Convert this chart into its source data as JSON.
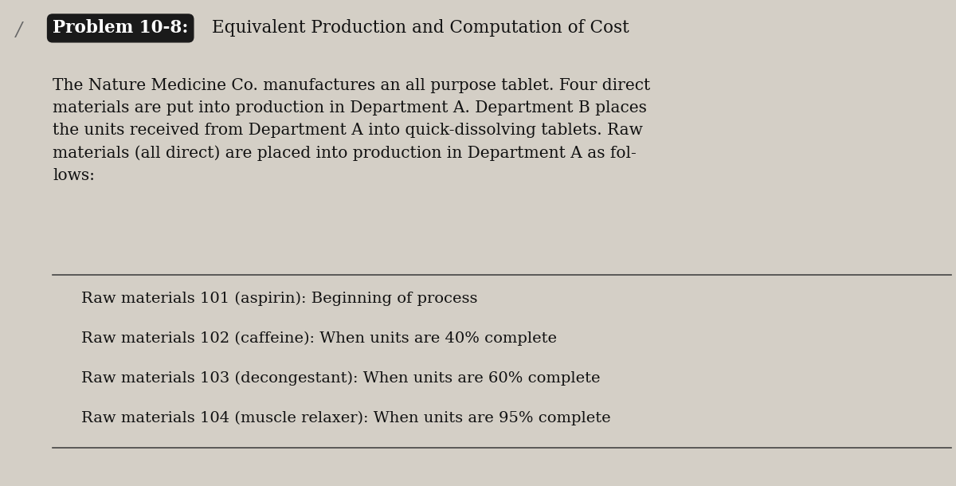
{
  "bg_color": "#d4cfc6",
  "problem_label": "Problem 10-8:",
  "problem_label_bg": "#1a1a1a",
  "problem_label_color": "#ffffff",
  "problem_title": "Equivalent Production and Computation of Cost",
  "body_text": "The Nature Medicine Co. manufactures an all purpose tablet. Four direct\nmaterials are put into production in Department A. Department B places\nthe units received from Department A into quick-dissolving tablets. Raw\nmaterials (all direct) are placed into production in Department A as fol-\nlows:",
  "list_items": [
    "Raw materials 101 (aspirin): Beginning of process",
    "Raw materials 102 (caffeine): When units are 40% complete",
    "Raw materials 103 (decongestant): When units are 60% complete",
    "Raw materials 104 (muscle relaxer): When units are 95% complete"
  ],
  "header_fontsize": 15.5,
  "body_fontsize": 14.5,
  "list_fontsize": 14,
  "slash_color": "#666666",
  "text_color": "#111111",
  "line_color": "#444444"
}
